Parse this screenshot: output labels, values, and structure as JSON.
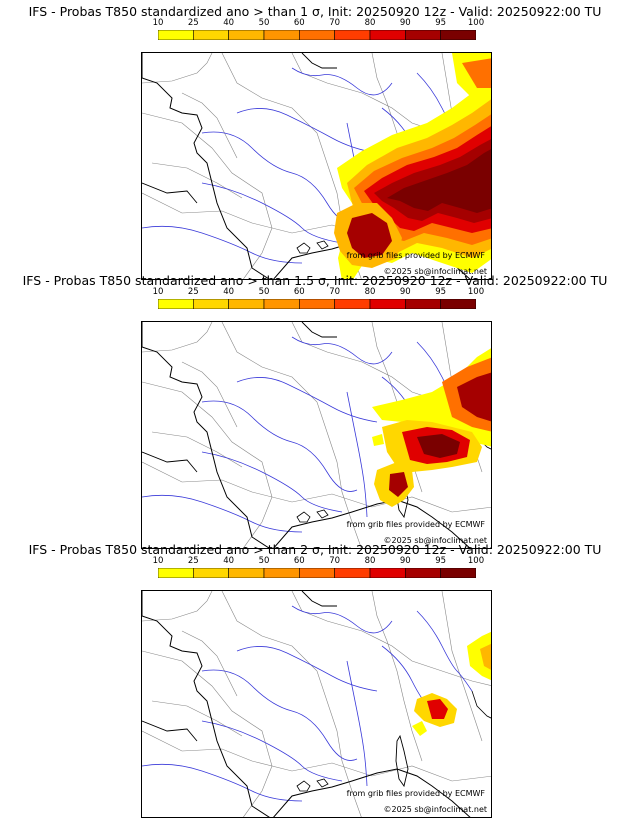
{
  "colorbar": {
    "ticks": [
      "10",
      "25",
      "40",
      "50",
      "60",
      "70",
      "80",
      "90",
      "95",
      "100"
    ],
    "colors": [
      "#ffff00",
      "#ffd700",
      "#ffb700",
      "#ff9500",
      "#ff7000",
      "#ff3d00",
      "#e00000",
      "#a50000",
      "#7a0000"
    ]
  },
  "panels": [
    {
      "title": "IFS - Probas T850  standardized ano > than 1 σ, Init: 20250920 12z - Valid: 20250922:00 TU",
      "source_credit": "from grib files provided by ECMWF",
      "copyright": "©2025 sb@infoclimat.net",
      "anomaly_threshold": "1 σ"
    },
    {
      "title": "IFS - Probas T850  standardized ano > than 1.5 σ, Init: 20250920 12z - Valid: 20250922:00 TU",
      "source_credit": "from grib files provided by ECMWF",
      "copyright": "©2025 sb@infoclimat.net",
      "anomaly_threshold": "1.5 σ"
    },
    {
      "title": "IFS - Probas T850  standardized ano > than 2 σ, Init: 20250920 12z - Valid: 20250922:00 TU",
      "source_credit": "from grib files provided by ECMWF",
      "copyright": "©2025 sb@infoclimat.net",
      "anomaly_threshold": "2 σ"
    }
  ]
}
